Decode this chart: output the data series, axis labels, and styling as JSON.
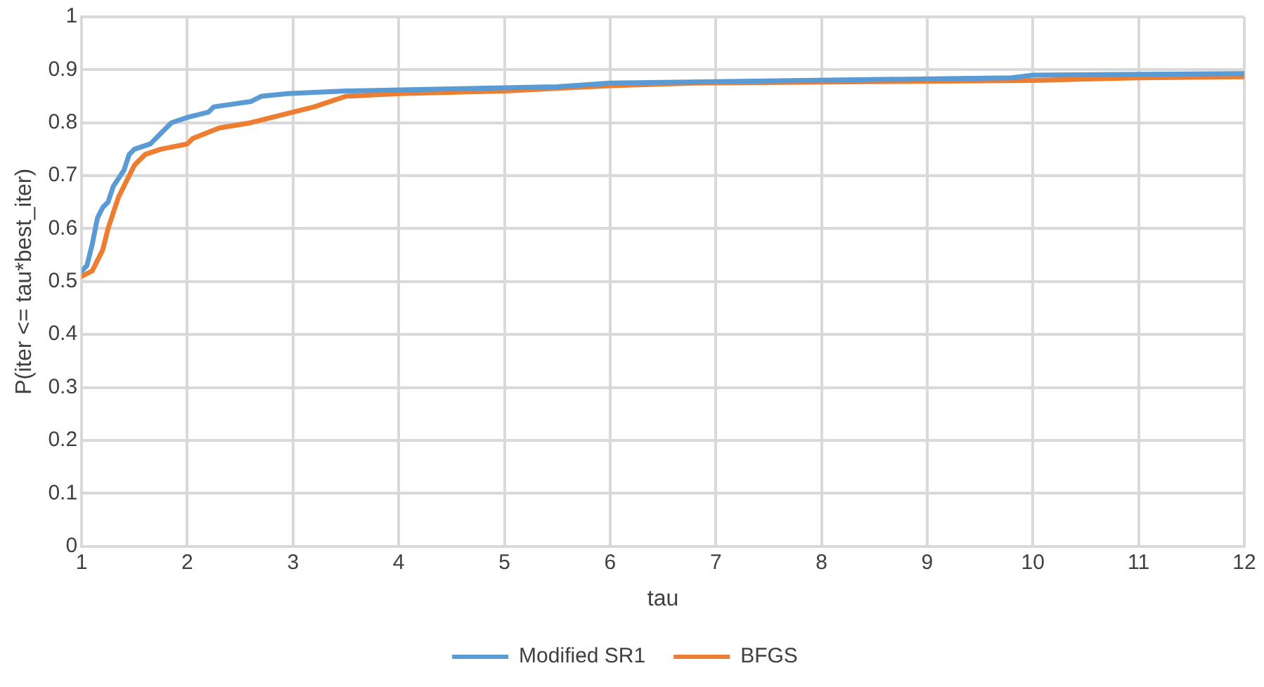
{
  "chart_data": {
    "type": "line",
    "xlabel": "tau",
    "ylabel": "P(iter <= tau*best_iter)",
    "xlim": [
      1,
      12
    ],
    "ylim": [
      0,
      1
    ],
    "xticks": [
      1,
      2,
      3,
      4,
      5,
      6,
      7,
      8,
      9,
      10,
      11,
      12
    ],
    "yticks": [
      0,
      {
        "value": 0.1,
        "label": "0.1"
      },
      {
        "value": 0.2,
        "label": "0.2"
      },
      {
        "value": 0.3,
        "label": "0.3"
      },
      {
        "value": 0.4,
        "label": "0.4"
      },
      {
        "value": 0.5,
        "label": "0.5"
      },
      {
        "value": 0.6,
        "label": "0.6"
      },
      {
        "value": 0.7,
        "label": "0.7"
      },
      {
        "value": 0.8,
        "label": "0.8"
      },
      {
        "value": 0.9,
        "label": "0.9"
      },
      1
    ],
    "grid": true,
    "legend": "bottom",
    "marker": "none",
    "line_style": "solid",
    "series": [
      {
        "name": "Modified SR1",
        "color": "#5b9bd5",
        "x": [
          1,
          1.05,
          1.1,
          1.15,
          1.2,
          1.25,
          1.3,
          1.4,
          1.45,
          1.5,
          1.65,
          1.75,
          1.85,
          2,
          2.2,
          2.25,
          2.6,
          2.7,
          2.95,
          3.5,
          5.5,
          6,
          9.8,
          10,
          12
        ],
        "values": [
          0.52,
          0.53,
          0.57,
          0.62,
          0.64,
          0.65,
          0.68,
          0.71,
          0.74,
          0.75,
          0.76,
          0.78,
          0.8,
          0.81,
          0.82,
          0.83,
          0.84,
          0.85,
          0.855,
          0.86,
          0.868,
          0.875,
          0.885,
          0.89,
          0.893
        ]
      },
      {
        "name": "BFGS",
        "color": "#ed7d31",
        "x": [
          1,
          1.1,
          1.2,
          1.25,
          1.35,
          1.45,
          1.5,
          1.6,
          1.75,
          2,
          2.05,
          2.3,
          2.6,
          2.8,
          3.2,
          3.5,
          4,
          5,
          6,
          6.8,
          10,
          11,
          12
        ],
        "values": [
          0.51,
          0.52,
          0.56,
          0.6,
          0.66,
          0.7,
          0.72,
          0.74,
          0.75,
          0.76,
          0.77,
          0.79,
          0.8,
          0.81,
          0.83,
          0.85,
          0.855,
          0.86,
          0.87,
          0.875,
          0.88,
          0.885,
          0.887
        ]
      }
    ]
  }
}
